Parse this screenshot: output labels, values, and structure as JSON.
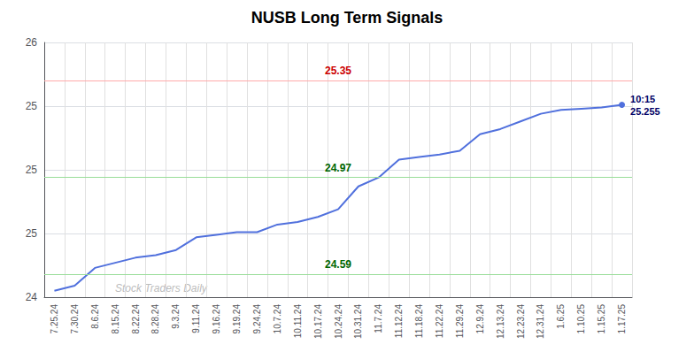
{
  "chart_data": {
    "type": "line",
    "title": "NUSB Long Term Signals",
    "categories": [
      "7.25.24",
      "7.30.24",
      "8.6.24",
      "8.15.24",
      "8.22.24",
      "8.28.24",
      "9.3.24",
      "9.11.24",
      "9.16.24",
      "9.19.24",
      "9.24.24",
      "10.7.24",
      "10.11.24",
      "10.17.24",
      "10.24.24",
      "10.31.24",
      "11.7.24",
      "11.12.24",
      "11.18.24",
      "11.22.24",
      "11.29.24",
      "12.9.24",
      "12.13.24",
      "12.23.24",
      "12.31.24",
      "1.6.25",
      "1.10.25",
      "1.15.25",
      "1.17.25"
    ],
    "values": [
      24.525,
      24.545,
      24.615,
      24.635,
      24.655,
      24.665,
      24.685,
      24.735,
      24.745,
      24.755,
      24.755,
      24.785,
      24.795,
      24.815,
      24.845,
      24.935,
      24.97,
      25.04,
      25.05,
      25.06,
      25.075,
      25.14,
      25.16,
      25.19,
      25.22,
      25.235,
      25.24,
      25.245,
      25.255
    ],
    "ylim": [
      24.5,
      25.5
    ],
    "yticks": [
      {
        "value": 24.5,
        "label": "24"
      },
      {
        "value": 24.75,
        "label": "25"
      },
      {
        "value": 25.0,
        "label": "25"
      },
      {
        "value": 25.25,
        "label": "25"
      },
      {
        "value": 25.5,
        "label": "26"
      }
    ],
    "grid": true,
    "reference_lines": [
      {
        "value": 25.35,
        "color": "#ffaaaa",
        "label_color": "#cc0000"
      },
      {
        "value": 24.97,
        "color": "#99dd99",
        "label_color": "#006600"
      },
      {
        "value": 24.59,
        "color": "#99dd99",
        "label_color": "#006600"
      }
    ],
    "last_point": {
      "label": "10:15",
      "value": 25.255,
      "color": "#000066"
    },
    "watermark": "Stock Traders Daily"
  }
}
